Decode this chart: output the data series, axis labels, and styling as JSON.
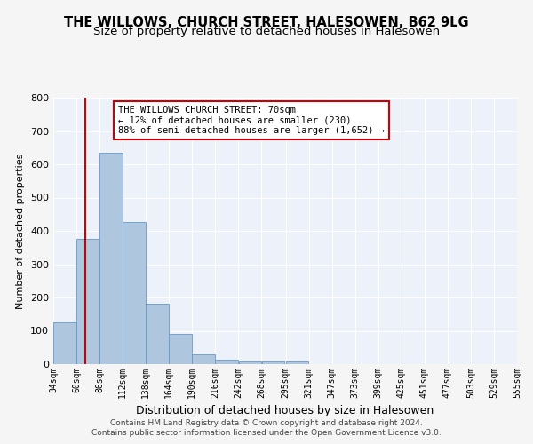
{
  "title": "THE WILLOWS, CHURCH STREET, HALESOWEN, B62 9LG",
  "subtitle": "Size of property relative to detached houses in Halesowen",
  "xlabel": "Distribution of detached houses by size in Halesowen",
  "ylabel": "Number of detached properties",
  "footer1": "Contains HM Land Registry data © Crown copyright and database right 2024.",
  "footer2": "Contains public sector information licensed under the Open Government Licence v3.0.",
  "bin_edges": [
    34,
    60,
    86,
    112,
    138,
    164,
    190,
    216,
    242,
    268,
    295,
    321,
    347,
    373,
    399,
    425,
    451,
    477,
    503,
    529,
    555
  ],
  "bar_heights": [
    125,
    375,
    635,
    428,
    182,
    90,
    30,
    14,
    8,
    8,
    8,
    0,
    0,
    0,
    0,
    0,
    0,
    0,
    0,
    0
  ],
  "bar_color": "#aec6de",
  "bar_edge_color": "#6699cc",
  "property_size": 70,
  "red_line_color": "#cc0000",
  "annotation_text": "THE WILLOWS CHURCH STREET: 70sqm\n← 12% of detached houses are smaller (230)\n88% of semi-detached houses are larger (1,652) →",
  "annotation_box_color": "#ffffff",
  "annotation_box_edge_color": "#cc0000",
  "ylim": [
    0,
    800
  ],
  "yticks": [
    0,
    100,
    200,
    300,
    400,
    500,
    600,
    700,
    800
  ],
  "bg_color": "#edf1f9",
  "grid_color": "#ffffff",
  "fig_bg_color": "#f5f5f5",
  "title_fontsize": 10.5,
  "subtitle_fontsize": 9.5,
  "ylabel_fontsize": 8,
  "xlabel_fontsize": 9,
  "tick_fontsize": 7,
  "annotation_fontsize": 7.5,
  "footer_fontsize": 6.5
}
